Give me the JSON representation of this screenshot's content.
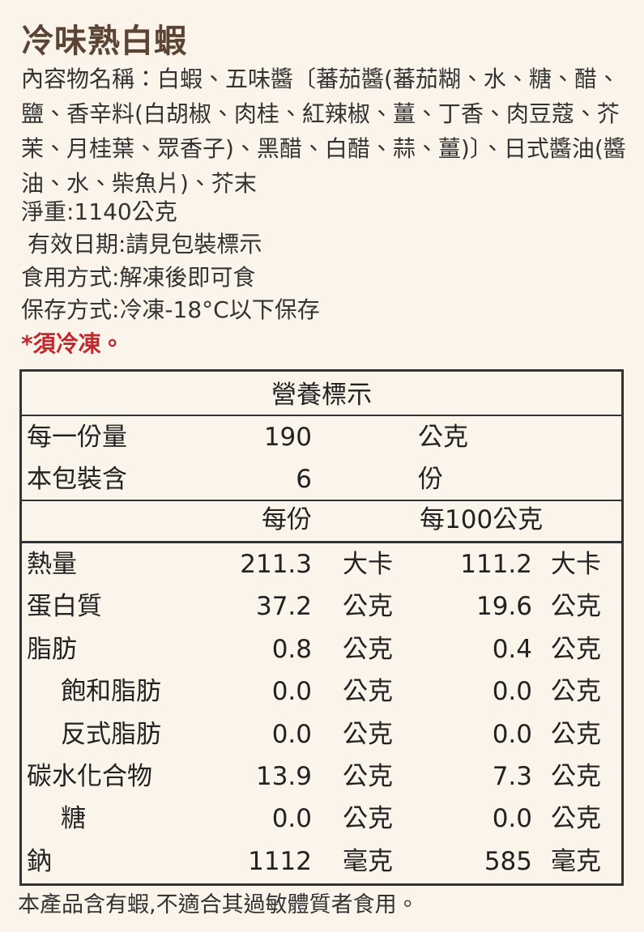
{
  "header": {
    "title": "冷味熟白蝦"
  },
  "info": {
    "ingredients": "內容物名稱：白蝦、五味醬〔蕃茄醬(蕃茄糊、水、糖、醋、鹽、香辛料(白胡椒、肉桂、紅辣椒、薑、丁香、肉豆蔻、芥茉、月桂葉、眾香子)、黑醋、白醋、蒜、薑)〕、日式醬油(醬油、水、柴魚片)、芥末",
    "net_weight": "淨重:1140公克",
    "expiry": "有效日期:請見包裝標示",
    "usage": "食用方式:解凍後即可食",
    "storage": "保存方式:冷凍-18°C以下保存",
    "warning": "*須冷凍。"
  },
  "nutrition": {
    "title": "營養標示",
    "serving_size": {
      "label": "每一份量",
      "value": "190",
      "unit": "公克"
    },
    "servings": {
      "label": "本包裝含",
      "value": "6",
      "unit": "份"
    },
    "col_headers": [
      "每份",
      "每100公克"
    ],
    "rows": [
      {
        "label": "熱量",
        "per_serving": "211.3",
        "per_serving_unit": "大卡",
        "per_100g": "111.2",
        "per_100g_unit": "大卡"
      },
      {
        "label": "蛋白質",
        "per_serving": "37.2",
        "per_serving_unit": "公克",
        "per_100g": "19.6",
        "per_100g_unit": "公克"
      },
      {
        "label": "脂肪",
        "per_serving": "0.8",
        "per_serving_unit": "公克",
        "per_100g": "0.4",
        "per_100g_unit": "公克"
      },
      {
        "label": "飽和脂肪",
        "per_serving": "0.0",
        "per_serving_unit": "公克",
        "per_100g": "0.0",
        "per_100g_unit": "公克"
      },
      {
        "label": "反式脂肪",
        "per_serving": "0.0",
        "per_serving_unit": "公克",
        "per_100g": "0.0",
        "per_100g_unit": "公克"
      },
      {
        "label": "碳水化合物",
        "per_serving": "13.9",
        "per_serving_unit": "公克",
        "per_100g": "7.3",
        "per_100g_unit": "公克"
      },
      {
        "label": "糖",
        "per_serving": "0.0",
        "per_serving_unit": "公克",
        "per_100g": "0.0",
        "per_100g_unit": "公克"
      },
      {
        "label": "鈉",
        "per_serving": "1112",
        "per_serving_unit": "毫克",
        "per_100g": "585",
        "per_100g_unit": "毫克"
      }
    ]
  },
  "footer": {
    "note": "本產品含有蝦,不適合其過敏體質者食用。"
  }
}
